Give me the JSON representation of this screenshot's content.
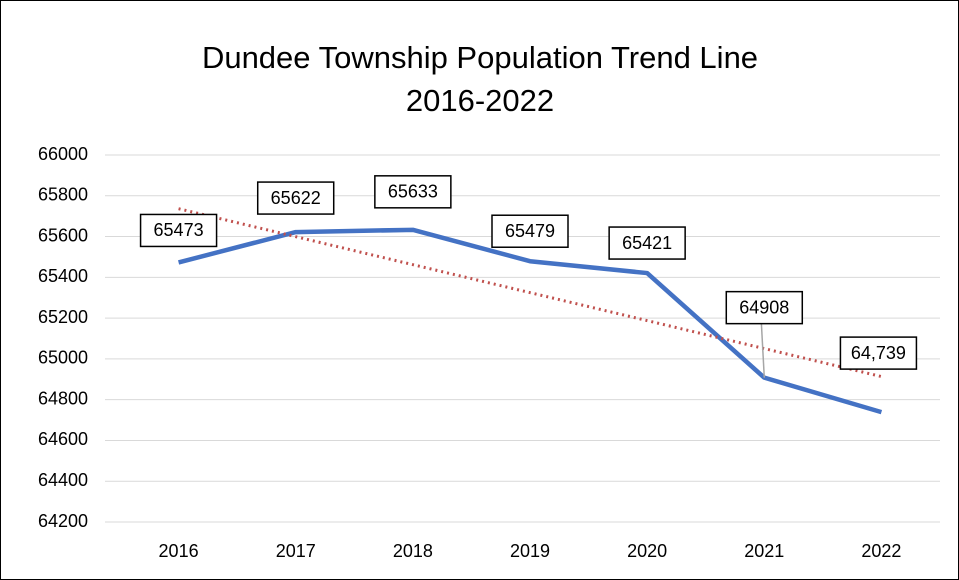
{
  "chart_data": {
    "type": "line",
    "title": [
      "Dundee Township Population Trend Line",
      "2016-2022"
    ],
    "categories": [
      "2016",
      "2017",
      "2018",
      "2019",
      "2020",
      "2021",
      "2022"
    ],
    "values": [
      65473,
      65622,
      65633,
      65479,
      65421,
      64908,
      64739
    ],
    "value_labels": [
      "65473",
      "65622",
      "65633",
      "65479",
      "65421",
      "64908",
      "64,739"
    ],
    "color": "#4472c4",
    "trendline": "linear",
    "trendline_color": "#c0504d",
    "ylim": [
      64200,
      66000
    ],
    "yticks": [
      64200,
      64400,
      64600,
      64800,
      65000,
      65200,
      65400,
      65600,
      65800,
      66000
    ],
    "grid": true
  }
}
